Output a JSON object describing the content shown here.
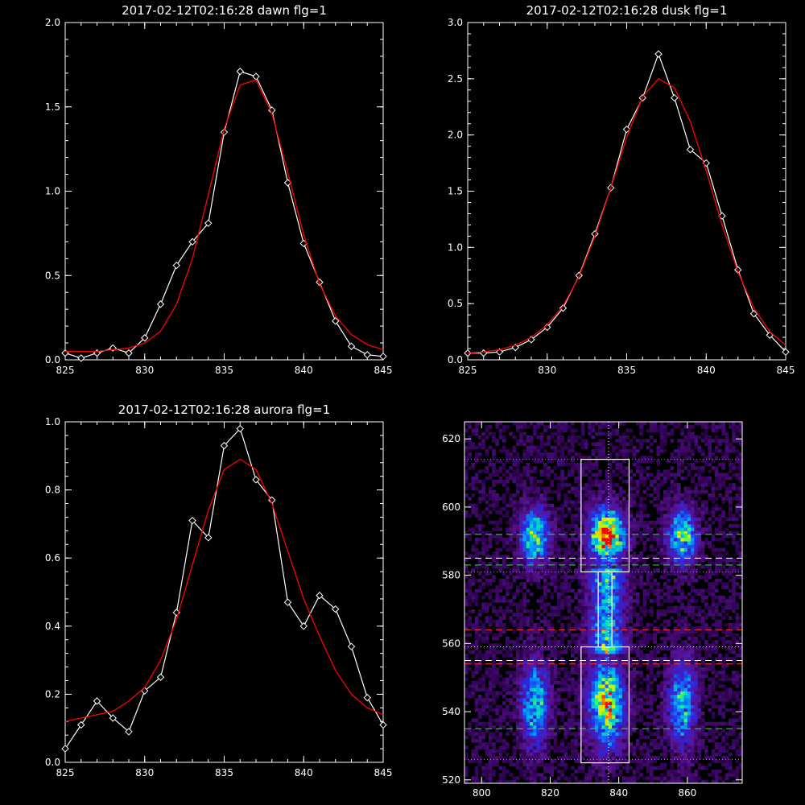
{
  "colors": {
    "background": "#000000",
    "data": "#ffffff",
    "fit": "#ff0000",
    "green_line": "#00ff00",
    "red_line": "#ff3030",
    "white_line": "#ffffff"
  },
  "chart_data": [
    {
      "type": "line",
      "title": "2017-02-12T02:16:28 dawn flg=1",
      "xlim": [
        825,
        845
      ],
      "ylim": [
        0,
        2.0
      ],
      "xticks": [
        "825",
        "830",
        "835",
        "840",
        "845"
      ],
      "yticks": [
        "0.0",
        "0.5",
        "1.0",
        "1.5",
        "2.0"
      ],
      "series": [
        {
          "role": "data",
          "marker": "diamond",
          "x": [
            825,
            826,
            827,
            828,
            829,
            830,
            831,
            832,
            833,
            834,
            835,
            836,
            837,
            838,
            839,
            840,
            841,
            842,
            843,
            844,
            845
          ],
          "values": [
            0.04,
            0.01,
            0.04,
            0.07,
            0.04,
            0.13,
            0.33,
            0.56,
            0.7,
            0.81,
            1.35,
            1.71,
            1.68,
            1.48,
            1.05,
            0.69,
            0.46,
            0.23,
            0.08,
            0.03,
            0.02
          ]
        },
        {
          "role": "fit",
          "x": [
            825,
            826,
            827,
            828,
            829,
            830,
            831,
            832,
            833,
            834,
            835,
            836,
            837,
            838,
            839,
            840,
            841,
            842,
            843,
            844,
            845
          ],
          "values": [
            0.05,
            0.05,
            0.05,
            0.06,
            0.07,
            0.1,
            0.17,
            0.33,
            0.6,
            0.98,
            1.37,
            1.63,
            1.66,
            1.46,
            1.11,
            0.74,
            0.45,
            0.26,
            0.15,
            0.09,
            0.06
          ]
        }
      ]
    },
    {
      "type": "line",
      "title": "2017-02-12T02:16:28 dusk flg=1",
      "xlim": [
        825,
        845
      ],
      "ylim": [
        0,
        3.0
      ],
      "xticks": [
        "825",
        "830",
        "835",
        "840",
        "845"
      ],
      "yticks": [
        "0.0",
        "0.5",
        "1.0",
        "1.5",
        "2.0",
        "2.5",
        "3.0"
      ],
      "series": [
        {
          "role": "data",
          "marker": "diamond",
          "x": [
            825,
            826,
            827,
            828,
            829,
            830,
            831,
            832,
            833,
            834,
            835,
            836,
            837,
            838,
            839,
            840,
            841,
            842,
            843,
            844,
            845
          ],
          "values": [
            0.06,
            0.06,
            0.07,
            0.11,
            0.18,
            0.29,
            0.46,
            0.75,
            1.12,
            1.53,
            2.05,
            2.33,
            2.72,
            2.33,
            1.87,
            1.75,
            1.28,
            0.8,
            0.41,
            0.22,
            0.07
          ]
        },
        {
          "role": "fit",
          "x": [
            825,
            826,
            827,
            828,
            829,
            830,
            831,
            832,
            833,
            834,
            835,
            836,
            837,
            838,
            839,
            840,
            841,
            842,
            843,
            844,
            845
          ],
          "values": [
            0.06,
            0.07,
            0.09,
            0.13,
            0.2,
            0.31,
            0.48,
            0.74,
            1.1,
            1.53,
            1.98,
            2.34,
            2.5,
            2.42,
            2.12,
            1.68,
            1.2,
            0.78,
            0.46,
            0.25,
            0.13
          ]
        }
      ]
    },
    {
      "type": "line",
      "title": "2017-02-12T02:16:28 aurora flg=1",
      "xlim": [
        825,
        845
      ],
      "ylim": [
        0,
        1.0
      ],
      "xticks": [
        "825",
        "830",
        "835",
        "840",
        "845"
      ],
      "yticks": [
        "0.0",
        "0.2",
        "0.4",
        "0.6",
        "0.8",
        "1.0"
      ],
      "series": [
        {
          "role": "data",
          "marker": "diamond",
          "x": [
            825,
            826,
            827,
            828,
            829,
            830,
            831,
            832,
            833,
            834,
            835,
            836,
            837,
            838,
            839,
            840,
            841,
            842,
            843,
            844,
            845
          ],
          "values": [
            0.04,
            0.11,
            0.18,
            0.13,
            0.09,
            0.21,
            0.25,
            0.44,
            0.71,
            0.66,
            0.93,
            0.98,
            0.83,
            0.77,
            0.47,
            0.4,
            0.49,
            0.45,
            0.34,
            0.19,
            0.11
          ]
        },
        {
          "role": "fit",
          "x": [
            825,
            826,
            827,
            828,
            829,
            830,
            831,
            832,
            833,
            834,
            835,
            836,
            837,
            838,
            839,
            840,
            841,
            842,
            843,
            844,
            845
          ],
          "values": [
            0.12,
            0.13,
            0.14,
            0.15,
            0.18,
            0.22,
            0.3,
            0.42,
            0.58,
            0.74,
            0.86,
            0.89,
            0.86,
            0.76,
            0.62,
            0.48,
            0.37,
            0.27,
            0.2,
            0.16,
            0.14
          ]
        }
      ]
    },
    {
      "type": "heatmap",
      "xlim": [
        795,
        876
      ],
      "ylim": [
        519,
        625
      ],
      "xticks": [
        "800",
        "820",
        "840",
        "860"
      ],
      "yticks": [
        "520",
        "540",
        "560",
        "580",
        "600",
        "620"
      ],
      "columns": [
        {
          "center": 815,
          "width": 4
        },
        {
          "center": 836,
          "width": 5
        },
        {
          "center": 858,
          "width": 4
        }
      ],
      "emission_regions": [
        {
          "y_low": 582,
          "y_high": 600,
          "peak": 1.0
        },
        {
          "y_low": 528,
          "y_high": 556,
          "peak": 0.85
        }
      ],
      "boxes": [
        {
          "x0": 829,
          "x1": 843,
          "y0": 581,
          "y1": 614
        },
        {
          "x0": 834,
          "x1": 838,
          "y0": 559,
          "y1": 581
        },
        {
          "x0": 829,
          "x1": 843,
          "y0": 525,
          "y1": 559
        }
      ],
      "vertical_line_x": 837,
      "hlines": [
        {
          "y": 614,
          "color": "green",
          "style": "dotted"
        },
        {
          "y": 592,
          "color": "green",
          "style": "dashed"
        },
        {
          "y": 585,
          "color": "white",
          "style": "dashed"
        },
        {
          "y": 583,
          "color": "green",
          "style": "dashed"
        },
        {
          "y": 581,
          "color": "green",
          "style": "dotted"
        },
        {
          "y": 564,
          "color": "red",
          "style": "dashed"
        },
        {
          "y": 559,
          "color": "white",
          "style": "dotted"
        },
        {
          "y": 555,
          "color": "white",
          "style": "dashed"
        },
        {
          "y": 554,
          "color": "red",
          "style": "dashed"
        },
        {
          "y": 535,
          "color": "green",
          "style": "dashed"
        },
        {
          "y": 526,
          "color": "green",
          "style": "dotted"
        }
      ]
    }
  ]
}
